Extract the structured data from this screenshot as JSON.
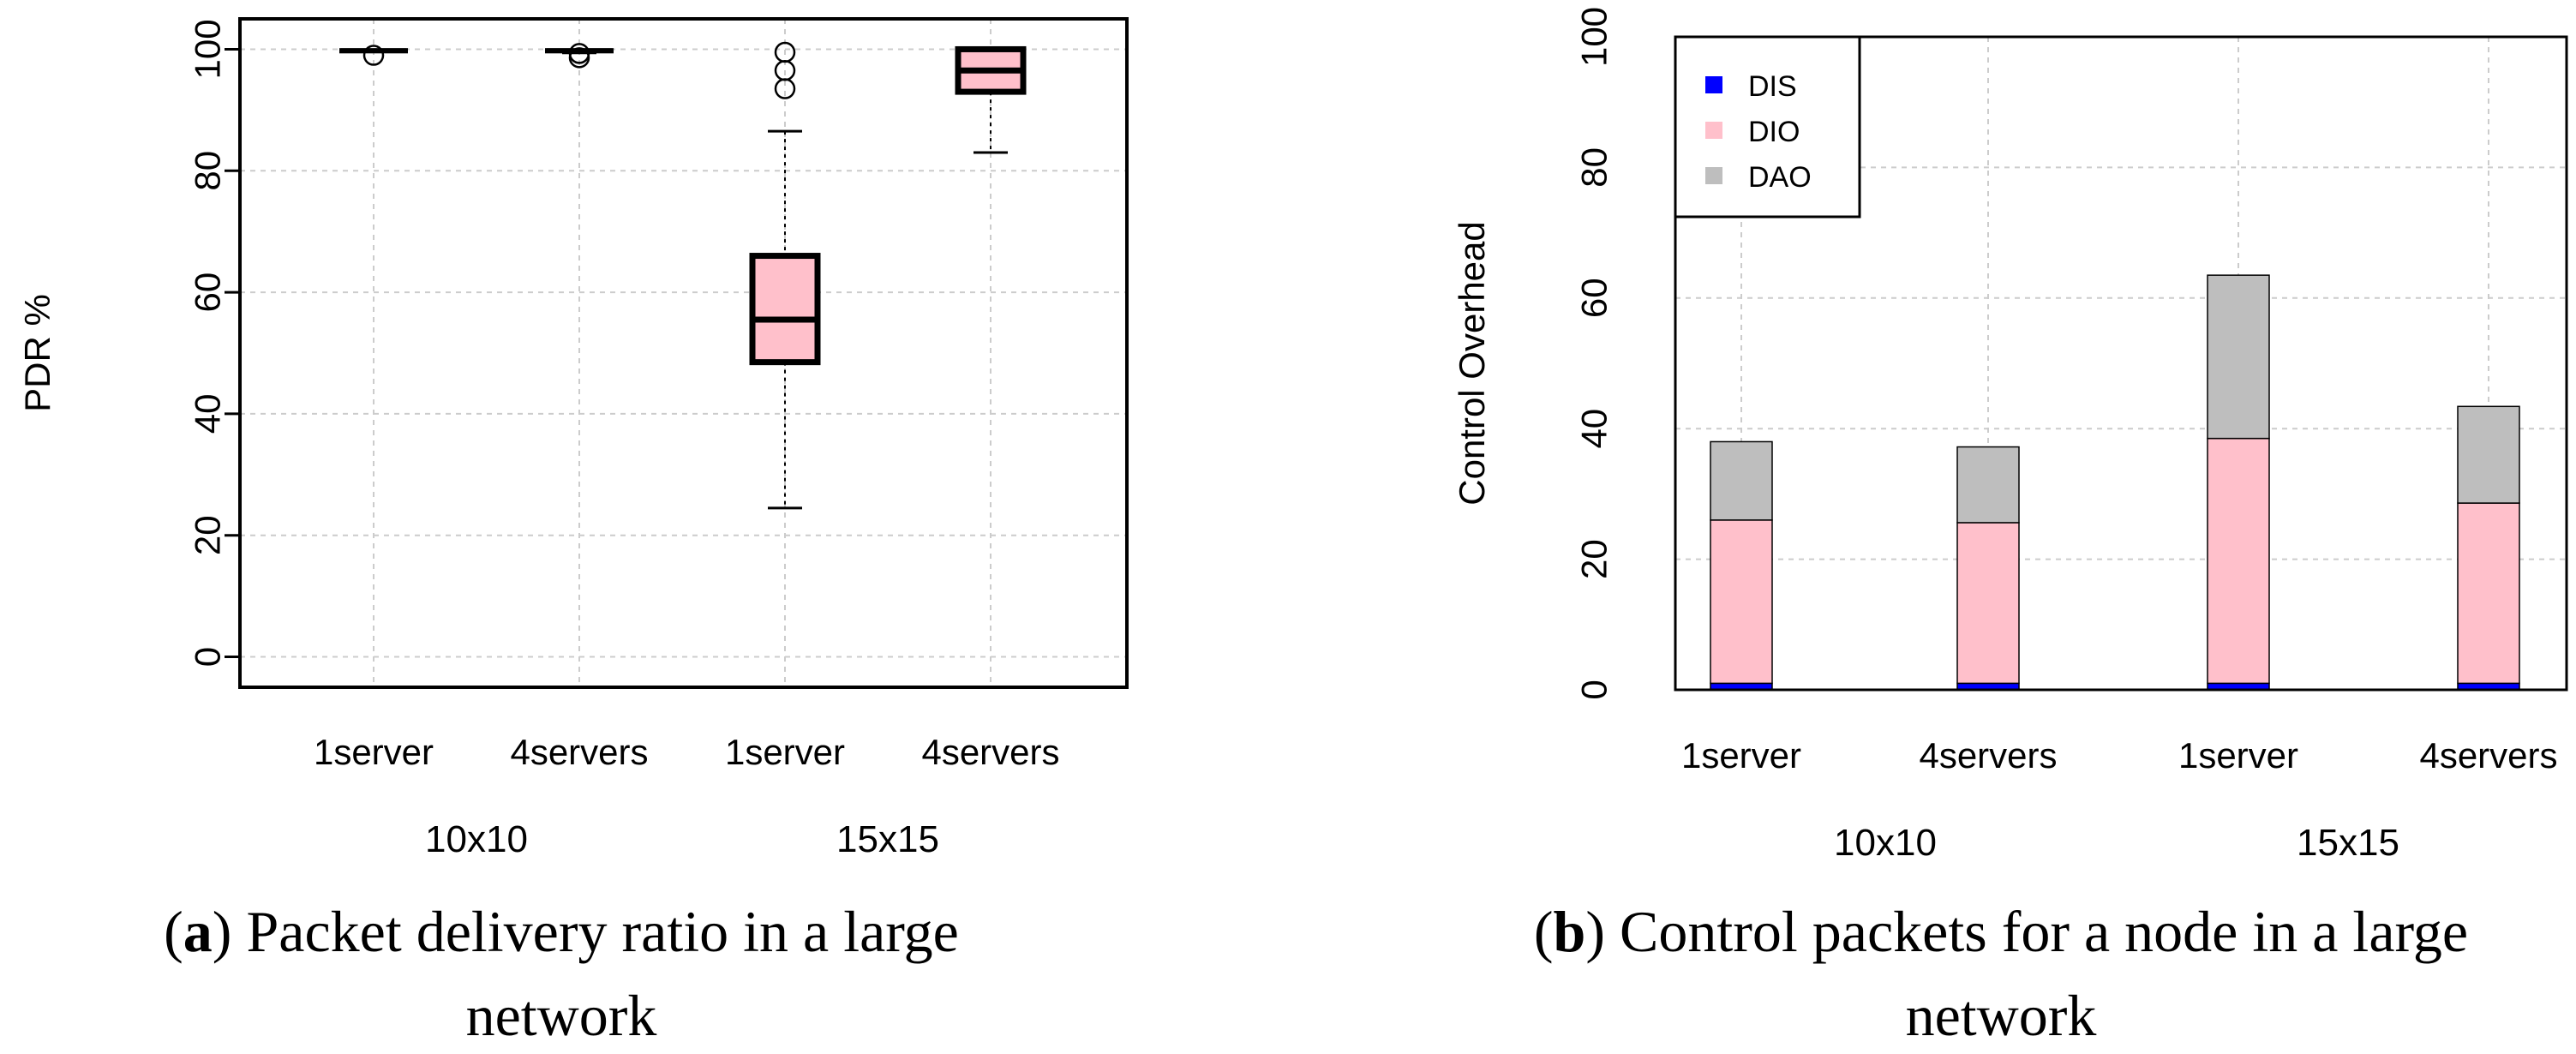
{
  "chart_data": [
    {
      "id": "a",
      "type": "boxplot",
      "ylabel": "PDR %",
      "xlabel": "",
      "ylim": [
        -5,
        105
      ],
      "yticks": [
        0,
        20,
        40,
        60,
        80,
        100
      ],
      "grid": true,
      "categories": [
        "1server",
        "4servers",
        "1server",
        "4servers"
      ],
      "groups": [
        "10x10",
        "15x15"
      ],
      "boxes": [
        {
          "min": 99.6,
          "q1": 99.6,
          "median": 99.8,
          "q3": 99.9,
          "max": 99.9,
          "outliers": [
            99.0
          ]
        },
        {
          "min": 99.4,
          "q1": 99.6,
          "median": 99.8,
          "q3": 99.9,
          "max": 99.9,
          "outliers": [
            98.6,
            99.3
          ]
        },
        {
          "min": 24.5,
          "q1": 48.5,
          "median": 55.5,
          "q3": 66,
          "max": 86.5,
          "outliers": [
            93.5,
            96.5,
            99.5
          ]
        },
        {
          "min": 83,
          "q1": 93,
          "median": 96.5,
          "q3": 100,
          "max": 100,
          "outliers": []
        }
      ],
      "caption_label": "a",
      "caption_text": "Packet delivery ratio in a large",
      "caption_line2": "network",
      "box_color": "#ffc0cb"
    },
    {
      "id": "b",
      "type": "bar",
      "stacked": true,
      "ylabel": "Control Overhead",
      "xlabel": "",
      "ylim": [
        0,
        100
      ],
      "yticks": [
        0,
        20,
        40,
        60,
        80,
        100
      ],
      "grid": true,
      "categories": [
        "1server",
        "4servers",
        "1server",
        "4servers"
      ],
      "groups": [
        "10x10",
        "15x15"
      ],
      "series": [
        {
          "name": "DIS",
          "color": "#0000ff",
          "values": [
            1,
            1,
            1,
            1
          ]
        },
        {
          "name": "DIO",
          "color": "#ffc0cb",
          "values": [
            25,
            24.6,
            37.5,
            27.6
          ]
        },
        {
          "name": "DAO",
          "color": "#bebebe",
          "values": [
            12,
            11.6,
            25,
            14.8
          ]
        }
      ],
      "legend_position": "top-left",
      "caption_label": "b",
      "caption_text": "Control packets for a node in a large",
      "caption_line2": "network"
    }
  ]
}
